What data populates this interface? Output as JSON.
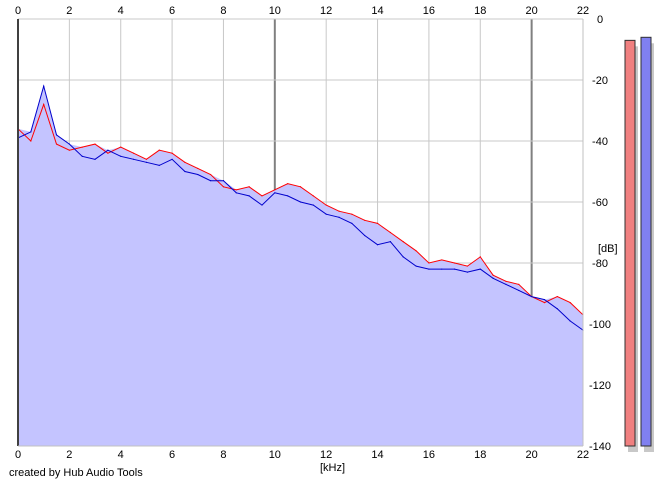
{
  "credit": "created by Hub Audio Tools",
  "colors": {
    "grid": "#c8c8c8",
    "grid_major": "#808080",
    "fill": "#c4c4ff",
    "left_channel": "#ff0000",
    "right_channel": "#0000cc",
    "meter_left": "#f08080",
    "meter_right": "#8080f0"
  },
  "chart_data": {
    "type": "line",
    "title": "",
    "xlabel": "[kHz]",
    "ylabel": "[dB]",
    "xlim": [
      0,
      22
    ],
    "ylim": [
      -140,
      0
    ],
    "x_ticks": [
      "0",
      "2",
      "4",
      "6",
      "8",
      "10",
      "12",
      "14",
      "16",
      "18",
      "20",
      "22"
    ],
    "y_ticks": [
      "0",
      "-20",
      "-40",
      "-60",
      "-80",
      "-100",
      "-120",
      "-140"
    ],
    "grid": true,
    "series": [
      {
        "color": "#ff0000",
        "x": [
          0,
          0.5,
          1,
          1.5,
          2,
          2.5,
          3,
          3.5,
          4,
          4.5,
          5,
          5.5,
          6,
          6.5,
          7,
          7.5,
          8,
          8.5,
          9,
          9.5,
          10,
          10.5,
          11,
          11.5,
          12,
          12.5,
          13,
          13.5,
          14,
          14.5,
          15,
          15.5,
          16,
          16.5,
          17,
          17.5,
          18,
          18.5,
          19,
          19.5,
          20,
          20.5,
          21,
          21.5,
          22
        ],
        "values": [
          -36,
          -40,
          -28,
          -41,
          -43,
          -42,
          -41,
          -44,
          -42,
          -44,
          -46,
          -43,
          -44,
          -47,
          -49,
          -51,
          -55,
          -56,
          -55,
          -58,
          -56,
          -54,
          -55,
          -58,
          -61,
          -63,
          -64,
          -66,
          -67,
          -70,
          -73,
          -76,
          -80,
          -79,
          -80,
          -81,
          -78,
          -84,
          -86,
          -87,
          -91,
          -93,
          -91,
          -93,
          -97
        ]
      },
      {
        "color": "#0000cc",
        "x": [
          0,
          0.5,
          1,
          1.5,
          2,
          2.5,
          3,
          3.5,
          4,
          4.5,
          5,
          5.5,
          6,
          6.5,
          7,
          7.5,
          8,
          8.5,
          9,
          9.5,
          10,
          10.5,
          11,
          11.5,
          12,
          12.5,
          13,
          13.5,
          14,
          14.5,
          15,
          15.5,
          16,
          16.5,
          17,
          17.5,
          18,
          18.5,
          19,
          19.5,
          20,
          20.5,
          21,
          21.5,
          22
        ],
        "values": [
          -39,
          -37,
          -22,
          -38,
          -41,
          -45,
          -46,
          -43,
          -45,
          -46,
          -47,
          -48,
          -46,
          -50,
          -51,
          -53,
          -53,
          -57,
          -58,
          -61,
          -57,
          -58,
          -60,
          -61,
          -64,
          -65,
          -67,
          -71,
          -74,
          -73,
          -78,
          -81,
          -82,
          -82,
          -82,
          -83,
          -82,
          -85,
          -87,
          -89,
          -91,
          -92,
          -95,
          -99,
          -102
        ]
      }
    ],
    "meter": {
      "left_level_db": -7,
      "right_level_db": -6
    }
  }
}
